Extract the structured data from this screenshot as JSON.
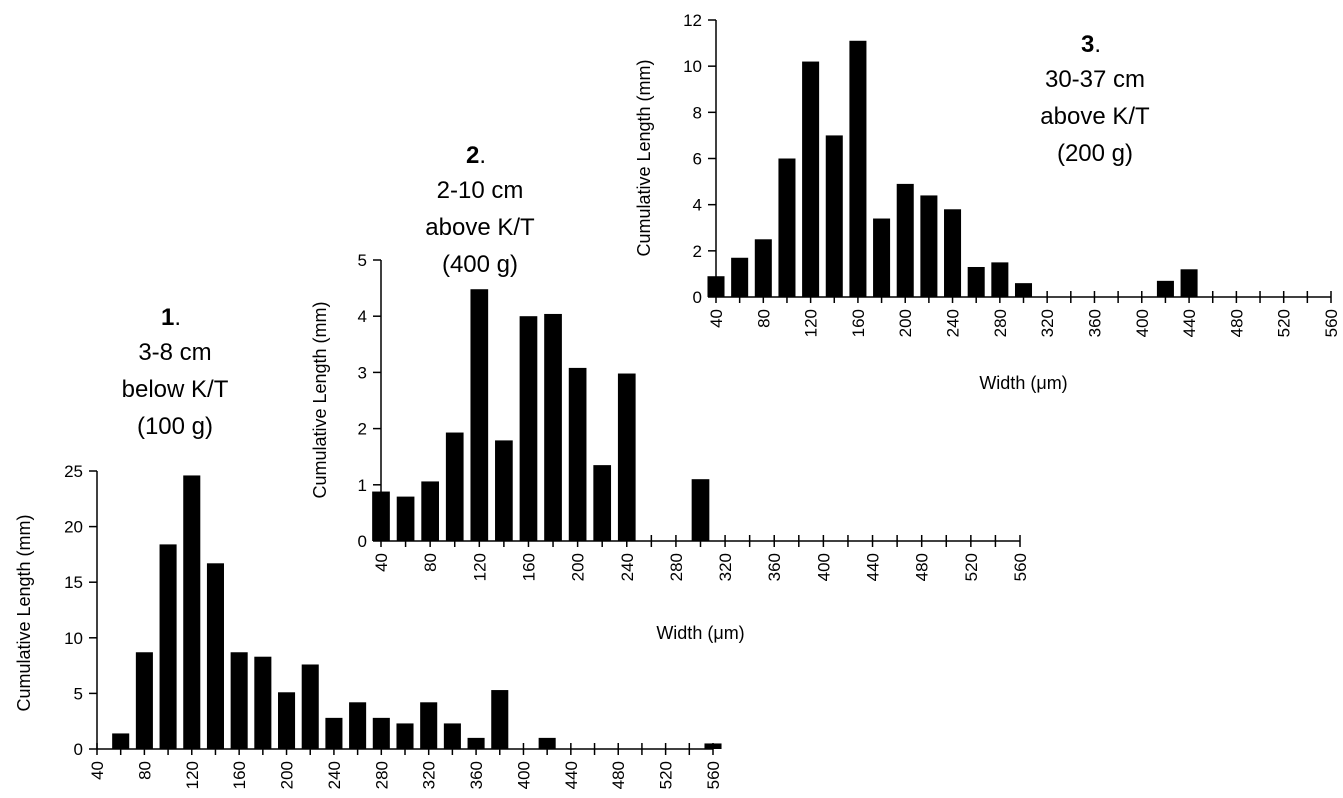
{
  "chart_data": [
    {
      "type": "bar",
      "caption": {
        "number": "1",
        "dot": ".",
        "lines": [
          "3-8 cm",
          "below K/T",
          "(100 g)"
        ]
      },
      "ylabel": "Cumulative Length (mm)",
      "xlabel": "",
      "ylim": [
        0,
        25
      ],
      "yticks": [
        "0",
        "5",
        "10",
        "15",
        "20",
        "25"
      ],
      "xlim": [
        40,
        560
      ],
      "xticks": [
        "40",
        "80",
        "120",
        "160",
        "200",
        "240",
        "280",
        "320",
        "360",
        "400",
        "440",
        "480",
        "520",
        "560"
      ],
      "x": [
        60,
        80,
        100,
        120,
        140,
        160,
        180,
        200,
        220,
        240,
        260,
        280,
        300,
        320,
        340,
        360,
        380,
        400,
        420,
        440,
        460,
        480,
        500,
        520,
        540,
        560
      ],
      "values": [
        1.4,
        8.7,
        18.4,
        24.6,
        16.7,
        8.7,
        8.3,
        5.1,
        7.6,
        2.8,
        4.2,
        2.8,
        2.3,
        4.2,
        2.3,
        1.0,
        5.3,
        0,
        1.0,
        0,
        0,
        0,
        0,
        0,
        0,
        0.5
      ]
    },
    {
      "type": "bar",
      "caption": {
        "number": "2",
        "dot": ".",
        "lines": [
          "2-10 cm",
          "above K/T",
          "(400 g)"
        ]
      },
      "ylabel": "Cumulative Length (mm)",
      "xlabel": "Width (μm)",
      "ylim": [
        0,
        5
      ],
      "yticks": [
        "0",
        "1",
        "2",
        "3",
        "4",
        "5"
      ],
      "xlim": [
        40,
        560
      ],
      "xticks": [
        "40",
        "80",
        "120",
        "160",
        "200",
        "240",
        "280",
        "320",
        "360",
        "400",
        "440",
        "480",
        "520",
        "560"
      ],
      "x": [
        40,
        60,
        80,
        100,
        120,
        140,
        160,
        180,
        200,
        220,
        240,
        260,
        280,
        300
      ],
      "values": [
        0.88,
        0.79,
        1.06,
        1.93,
        4.48,
        1.79,
        4.0,
        4.04,
        3.08,
        1.35,
        2.98,
        0,
        0,
        1.1
      ]
    },
    {
      "type": "bar",
      "caption": {
        "number": "3",
        "dot": ".",
        "lines": [
          "30-37 cm",
          "above K/T",
          "(200 g)"
        ]
      },
      "ylabel": "Cumulative Length (mm)",
      "xlabel": "Width (μm)",
      "ylim": [
        0,
        12
      ],
      "yticks": [
        "0",
        "2",
        "4",
        "6",
        "8",
        "10",
        "12"
      ],
      "xlim": [
        40,
        560
      ],
      "xticks": [
        "40",
        "80",
        "120",
        "160",
        "200",
        "240",
        "280",
        "320",
        "360",
        "400",
        "440",
        "480",
        "520",
        "560"
      ],
      "x": [
        40,
        60,
        80,
        100,
        120,
        140,
        160,
        180,
        200,
        220,
        240,
        260,
        280,
        300,
        320,
        340,
        360,
        380,
        400,
        420,
        440
      ],
      "values": [
        0.9,
        1.7,
        2.5,
        6.0,
        10.2,
        7.0,
        11.1,
        3.4,
        4.9,
        4.4,
        3.8,
        1.3,
        1.5,
        0.6,
        0,
        0,
        0,
        0,
        0,
        0.7,
        1.2
      ]
    }
  ]
}
